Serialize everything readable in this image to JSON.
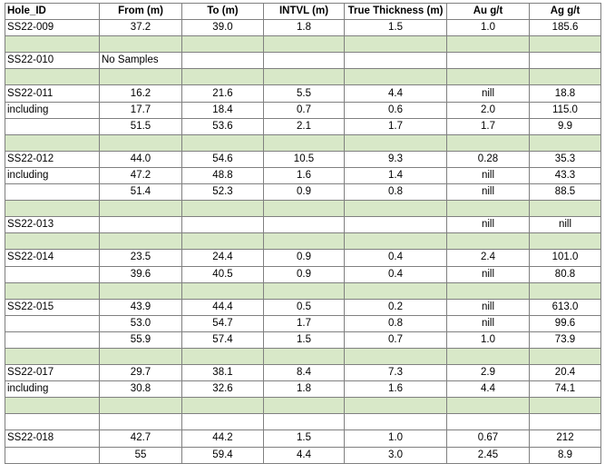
{
  "headers": [
    "Hole_ID",
    "From (m)",
    "To (m)",
    "INTVL (m)",
    "True Thickness (m)",
    "Au g/t",
    "Ag g/t"
  ],
  "rows": [
    {
      "type": "data",
      "cells": [
        "SS22-009",
        "37.2",
        "39.0",
        "1.8",
        "1.5",
        "1.0",
        "185.6"
      ]
    },
    {
      "type": "sep"
    },
    {
      "type": "data",
      "cells": [
        "SS22-010",
        "No Samples",
        "",
        "",
        "",
        "",
        ""
      ]
    },
    {
      "type": "sep"
    },
    {
      "type": "data",
      "cells": [
        "SS22-011",
        "16.2",
        "21.6",
        "5.5",
        "4.4",
        "nill",
        "18.8"
      ]
    },
    {
      "type": "data",
      "cells": [
        "including",
        "17.7",
        "18.4",
        "0.7",
        "0.6",
        "2.0",
        "115.0"
      ]
    },
    {
      "type": "data",
      "cells": [
        "",
        "51.5",
        "53.6",
        "2.1",
        "1.7",
        "1.7",
        "9.9"
      ]
    },
    {
      "type": "sep"
    },
    {
      "type": "data",
      "cells": [
        "SS22-012",
        "44.0",
        "54.6",
        "10.5",
        "9.3",
        "0.28",
        "35.3"
      ]
    },
    {
      "type": "data",
      "cells": [
        "including",
        "47.2",
        "48.8",
        "1.6",
        "1.4",
        "nill",
        "43.3"
      ]
    },
    {
      "type": "data",
      "cells": [
        "",
        "51.4",
        "52.3",
        "0.9",
        "0.8",
        "nill",
        "88.5"
      ]
    },
    {
      "type": "sep"
    },
    {
      "type": "data",
      "cells": [
        "SS22-013",
        "",
        "",
        "",
        "",
        "nill",
        "nill"
      ]
    },
    {
      "type": "sep"
    },
    {
      "type": "data",
      "cells": [
        "SS22-014",
        "23.5",
        "24.4",
        "0.9",
        "0.4",
        "2.4",
        "101.0"
      ]
    },
    {
      "type": "data",
      "cells": [
        "",
        "39.6",
        "40.5",
        "0.9",
        "0.4",
        "nill",
        "80.8"
      ]
    },
    {
      "type": "sep"
    },
    {
      "type": "data",
      "cells": [
        "SS22-015",
        "43.9",
        "44.4",
        "0.5",
        "0.2",
        "nill",
        "613.0"
      ]
    },
    {
      "type": "data",
      "cells": [
        "",
        "53.0",
        "54.7",
        "1.7",
        "0.8",
        "nill",
        "99.6"
      ]
    },
    {
      "type": "data",
      "cells": [
        "",
        "55.9",
        "57.4",
        "1.5",
        "0.7",
        "1.0",
        "73.9"
      ]
    },
    {
      "type": "sep"
    },
    {
      "type": "data",
      "cells": [
        "SS22-017",
        "29.7",
        "38.1",
        "8.4",
        "7.3",
        "2.9",
        "20.4"
      ]
    },
    {
      "type": "data",
      "cells": [
        "including",
        "30.8",
        "32.6",
        "1.8",
        "1.6",
        "4.4",
        "74.1"
      ]
    },
    {
      "type": "sep"
    },
    {
      "type": "sep",
      "shade": false
    },
    {
      "type": "data",
      "cells": [
        "SS22-018",
        "42.7",
        "44.2",
        "1.5",
        "1.0",
        "0.67",
        "212"
      ]
    },
    {
      "type": "data",
      "cells": [
        "",
        "55",
        "59.4",
        "4.4",
        "3.0",
        "2.45",
        "8.9"
      ]
    }
  ],
  "colors": {
    "separator_fill": "#d8e8c8",
    "grid_line": "#808080"
  }
}
